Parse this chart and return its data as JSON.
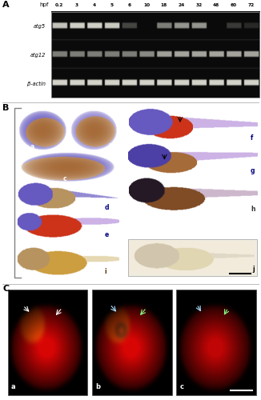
{
  "panel_A_label": "A",
  "panel_B_label": "B",
  "panel_C_label": "C",
  "hpf_labels": [
    "0.2",
    "3",
    "4",
    "5",
    "6",
    "10",
    "18",
    "24",
    "32",
    "48",
    "60",
    "72"
  ],
  "gene_labels": [
    "atg5",
    "atg12",
    "β-actin"
  ],
  "gel_bg": [
    10,
    10,
    10
  ],
  "band_color": [
    230,
    230,
    220
  ],
  "atg5_bands": [
    0.85,
    0.9,
    0.9,
    0.88,
    0.3,
    0.0,
    0.55,
    0.65,
    0.65,
    0.0,
    0.25,
    0.18
  ],
  "atg12_bands": [
    0.55,
    0.55,
    0.55,
    0.55,
    0.55,
    0.6,
    0.7,
    0.72,
    0.72,
    0.72,
    0.72,
    0.72
  ],
  "bactin_bands": [
    0.92,
    0.92,
    0.92,
    0.92,
    0.92,
    0.92,
    0.92,
    0.92,
    0.92,
    0.92,
    0.92,
    0.92
  ],
  "figure_bg": "#ffffff",
  "sub_labels_C": [
    "a",
    "b",
    "c"
  ],
  "sep_color": "#cccccc"
}
